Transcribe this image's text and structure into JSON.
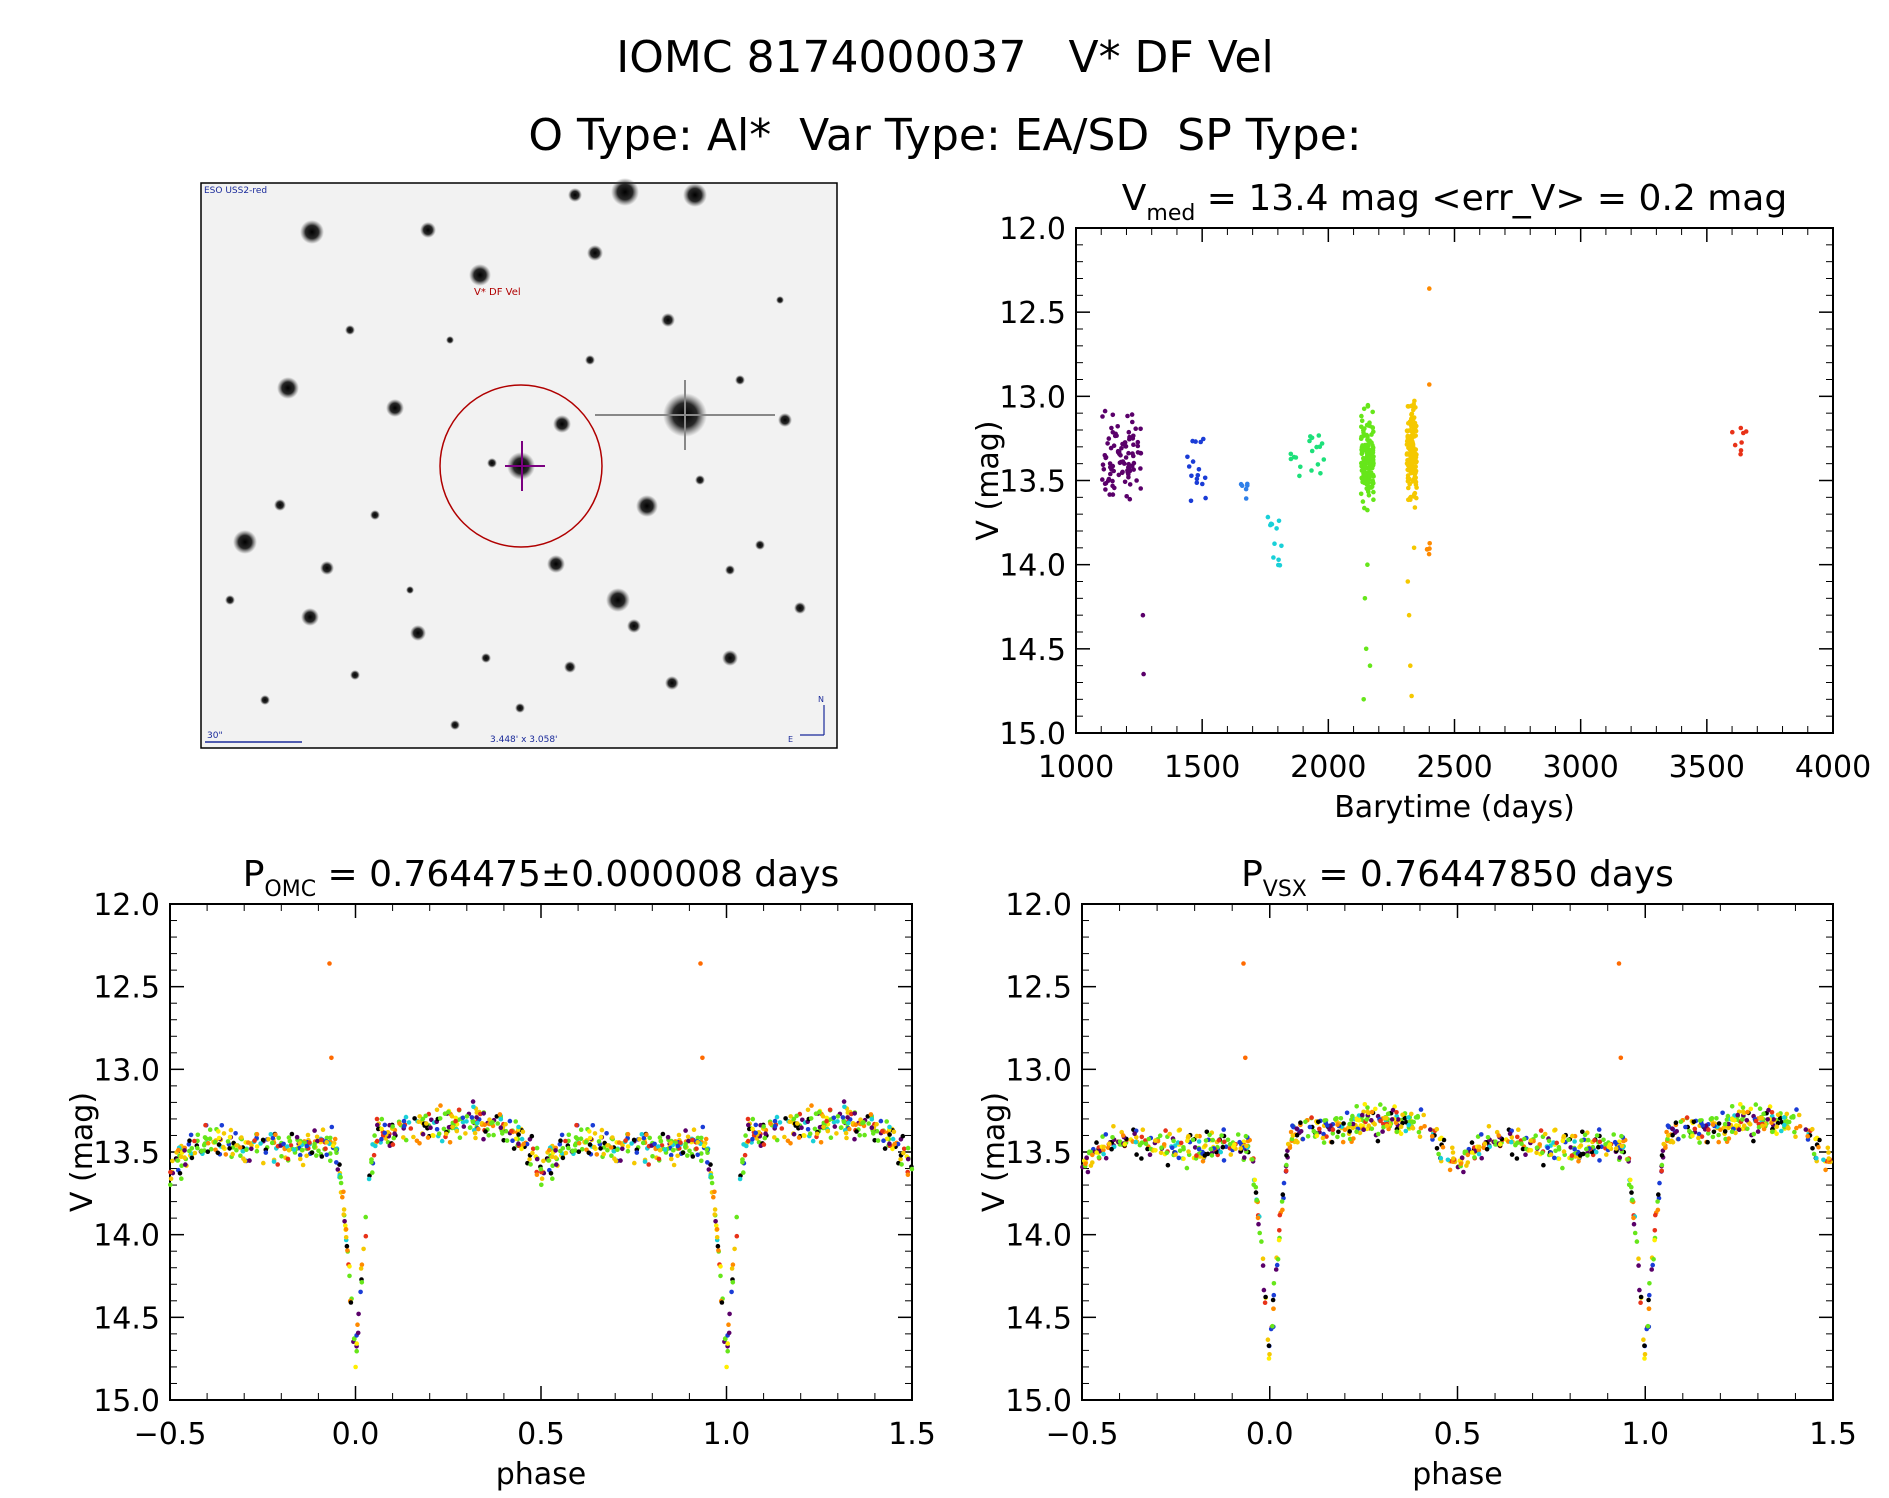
{
  "header": {
    "title": "IOMC 8174000037   V* DF Vel",
    "subtitle": "O Type: Al*  Var Type: EA/SD  SP Type:"
  },
  "finder": {
    "survey_label": "ESO USS2-red",
    "target_label": "V* DF Vel",
    "scale_label": "30\"",
    "size_label": "3.448' x 3.058'",
    "north_label": "N",
    "east_label": "E"
  },
  "chart_data": [
    {
      "id": "lightcurve",
      "type": "scatter",
      "title_parts": [
        "V",
        "med",
        " = 13.4 mag <err_V> = 0.2 mag"
      ],
      "xlabel": "Barytime (days)",
      "ylabel": "V (mag)",
      "xlim": [
        1000,
        4000
      ],
      "ylim": [
        15.0,
        12.0
      ],
      "xticks": [
        "1000",
        "1500",
        "2000",
        "2500",
        "3000",
        "3500",
        "4000"
      ],
      "yticks": [
        "12.0",
        "12.5",
        "13.0",
        "13.5",
        "14.0",
        "14.5",
        "15.0"
      ],
      "grid": false,
      "series": [
        {
          "color": "#5a006a",
          "t": [
            1100,
            1260
          ],
          "n": 90,
          "lo": 13.0,
          "hi": 13.7,
          "outliers": [
            [
              1265,
              14.3
            ],
            [
              1268,
              14.65
            ],
            [
              1225,
              13.25
            ],
            [
              1240,
              13.5
            ],
            [
              1105,
              13.12
            ]
          ]
        },
        {
          "color": "#1a3cd6",
          "t": [
            1440,
            1520
          ],
          "n": 16,
          "lo": 13.15,
          "hi": 13.8,
          "outliers": []
        },
        {
          "color": "#2e7fe8",
          "t": [
            1650,
            1680
          ],
          "n": 6,
          "lo": 13.42,
          "hi": 13.65,
          "outliers": []
        },
        {
          "color": "#19d0d8",
          "t": [
            1760,
            1820
          ],
          "n": 12,
          "lo": 13.5,
          "hi": 14.25,
          "outliers": []
        },
        {
          "color": "#1de07a",
          "t": [
            1840,
            2000
          ],
          "n": 18,
          "lo": 13.15,
          "hi": 13.55,
          "outliers": []
        },
        {
          "color": "#66e61a",
          "t": [
            2130,
            2180
          ],
          "n": 150,
          "lo": 13.0,
          "hi": 13.75,
          "outliers": [
            [
              2145,
              14.2
            ],
            [
              2150,
              14.5
            ],
            [
              2140,
              14.8
            ],
            [
              2165,
              14.6
            ],
            [
              2155,
              14.0
            ]
          ]
        },
        {
          "color": "#f5c800",
          "t": [
            2310,
            2350
          ],
          "n": 150,
          "lo": 12.95,
          "hi": 13.75,
          "outliers": [
            [
              2320,
              14.3
            ],
            [
              2325,
              14.6
            ],
            [
              2330,
              14.78
            ],
            [
              2315,
              14.1
            ],
            [
              2340,
              13.9
            ]
          ]
        },
        {
          "color": "#ff8a00",
          "t": [
            2390,
            2410
          ],
          "n": 5,
          "lo": 13.8,
          "hi": 14.1,
          "outliers": [
            [
              2400,
              12.36
            ],
            [
              2400,
              12.93
            ]
          ]
        },
        {
          "color": "#e83218",
          "t": [
            3600,
            3660
          ],
          "n": 8,
          "lo": 13.05,
          "hi": 13.38,
          "outliers": []
        }
      ]
    },
    {
      "id": "phase-omc",
      "type": "scatter",
      "title_parts": [
        "P",
        "OMC",
        " = 0.764475±0.000008 days"
      ],
      "xlabel": "phase",
      "ylabel": "V (mag)",
      "xlim": [
        -0.5,
        1.5
      ],
      "ylim": [
        15.0,
        12.0
      ],
      "xticks": [
        "−0.5",
        "0.0",
        "0.5",
        "1.0",
        "1.5"
      ],
      "yticks": [
        "12.0",
        "12.5",
        "13.0",
        "13.5",
        "14.0",
        "14.5",
        "15.0"
      ],
      "grid": false,
      "model": {
        "out_of_eclipse": 13.4,
        "primary_depth": 14.75,
        "secondary_depth": 13.62,
        "primary_width": 0.06,
        "secondary_width": 0.09
      },
      "colors": [
        "#66e61a",
        "#66e61a",
        "#66e61a",
        "#f5c800",
        "#f5c800",
        "#ffee00",
        "#ff8a00",
        "#1a3cd6",
        "#5a006a",
        "#19d0d8",
        "#e83218",
        "#000000"
      ],
      "outliers": [
        [
          -0.07,
          12.36
        ],
        [
          0.93,
          12.36
        ],
        [
          -0.065,
          12.93
        ],
        [
          0.935,
          12.93
        ]
      ]
    },
    {
      "id": "phase-vsx",
      "type": "scatter",
      "title_parts": [
        "P",
        "VSX",
        " = 0.76447850 days"
      ],
      "xlabel": "phase",
      "ylabel": "V (mag)",
      "xlim": [
        -0.5,
        1.5
      ],
      "ylim": [
        15.0,
        12.0
      ],
      "xticks": [
        "−0.5",
        "0.0",
        "0.5",
        "1.0",
        "1.5"
      ],
      "yticks": [
        "12.0",
        "12.5",
        "13.0",
        "13.5",
        "14.0",
        "14.5",
        "15.0"
      ],
      "grid": false,
      "model": {
        "out_of_eclipse": 13.4,
        "primary_depth": 14.75,
        "secondary_depth": 13.62,
        "primary_width": 0.06,
        "secondary_width": 0.09
      },
      "colors": [
        "#66e61a",
        "#66e61a",
        "#66e61a",
        "#f5c800",
        "#f5c800",
        "#ffee00",
        "#ff8a00",
        "#1a3cd6",
        "#5a006a",
        "#19d0d8",
        "#e83218",
        "#000000"
      ],
      "outliers": [
        [
          -0.07,
          12.36
        ],
        [
          0.93,
          12.36
        ],
        [
          -0.065,
          12.93
        ],
        [
          0.935,
          12.93
        ]
      ]
    }
  ]
}
